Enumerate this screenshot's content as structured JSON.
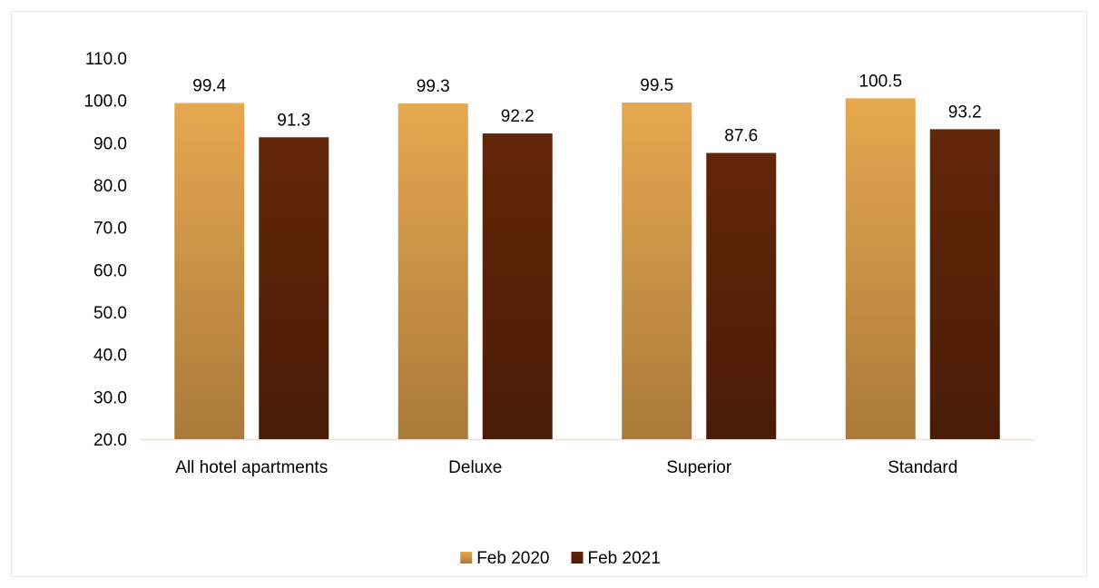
{
  "chart_data": {
    "type": "bar",
    "title": "",
    "xlabel": "",
    "ylabel": "",
    "categories": [
      "All hotel apartments",
      "Deluxe",
      "Superior",
      "Standard"
    ],
    "series": [
      {
        "name": "Feb 2020",
        "values": [
          99.4,
          99.3,
          99.5,
          100.5
        ],
        "labels": [
          "99.4",
          "99.3",
          "99.5",
          "100.5"
        ],
        "color_top": "#e6a850",
        "color_bottom": "#a97a3b"
      },
      {
        "name": "Feb 2021",
        "values": [
          91.3,
          92.2,
          87.6,
          93.2
        ],
        "labels": [
          "91.3",
          "92.2",
          "87.6",
          "93.2"
        ],
        "color_top": "#62260a",
        "color_bottom": "#4a1c05"
      }
    ],
    "ylim": [
      20,
      110
    ],
    "yticks": [
      "20.0",
      "30.0",
      "40.0",
      "50.0",
      "60.0",
      "70.0",
      "80.0",
      "90.0",
      "100.0",
      "110.0"
    ],
    "grid": false,
    "legend_position": "bottom-center",
    "axis_line_color": "#f0e2d4"
  }
}
